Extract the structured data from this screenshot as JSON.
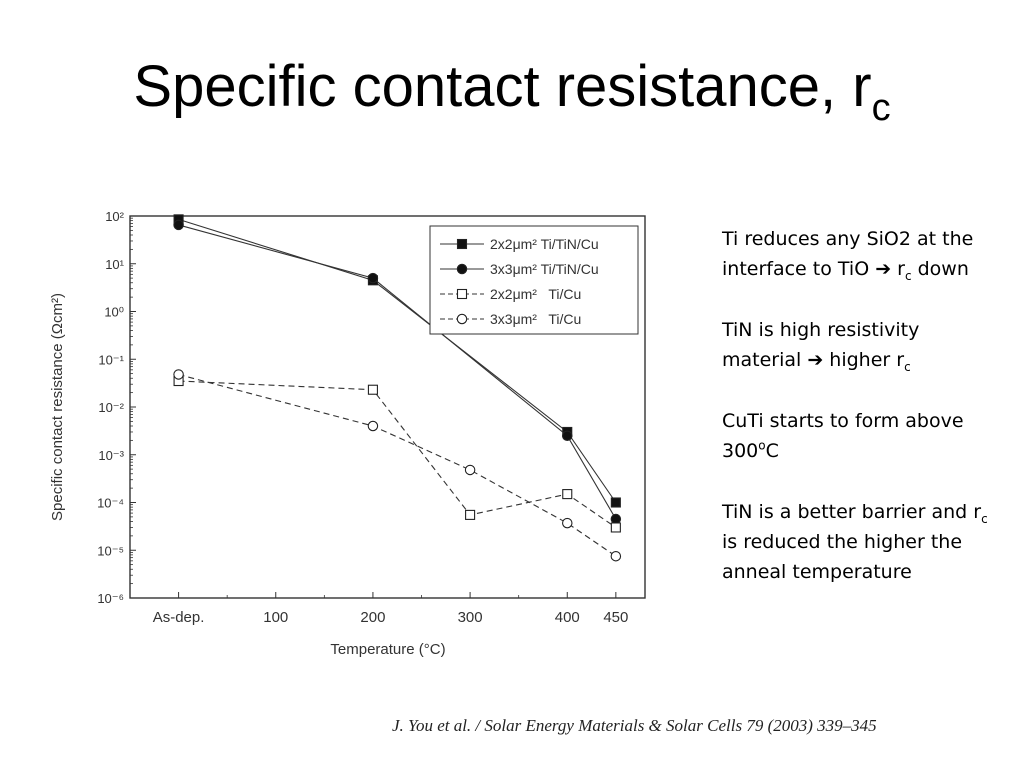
{
  "slide": {
    "title": "Specific contact resistance, r",
    "title_sub": "c"
  },
  "notes": [
    {
      "a": "Ti reduces any SiO2 at the interface to TiO ",
      "arrow": "➔",
      "b": " r",
      "sub": "c",
      "c": " down"
    },
    {
      "a": "TiN is high resistivity material ",
      "arrow": "➔",
      "b": " higher r",
      "sub": "c"
    },
    {
      "a": "CuTi starts to form above 300",
      "sup": "o",
      "b": "C"
    },
    {
      "a": "TiN is a better barrier and r",
      "sub": "c",
      "b": " is reduced the higher the anneal temperature"
    }
  ],
  "citation": "J. You et al. / Solar Energy Materials & Solar Cells 79 (2003) 339–345",
  "chart_data": {
    "type": "line",
    "xlabel": "Temperature (°C)",
    "ylabel": "Specific contact resistance (Ωcm²)",
    "x_ticks": [
      "As-dep.",
      "100",
      "200",
      "300",
      "400",
      "450"
    ],
    "x_tick_values": [
      0,
      100,
      200,
      300,
      400,
      450
    ],
    "xlim": [
      -50,
      480
    ],
    "y_scale": "log",
    "ylim_exponent": [
      -6,
      2
    ],
    "y_tick_labels": [
      "10²",
      "10¹",
      "10⁰",
      "10⁻¹",
      "10⁻²",
      "10⁻³",
      "10⁻⁴",
      "10⁻⁵",
      "10⁻⁶"
    ],
    "legend_position": "top-right",
    "series": [
      {
        "name": "2x2μm² Ti/TiN/Cu",
        "line": "solid",
        "marker": "square-filled",
        "x": [
          0,
          200,
          400,
          450
        ],
        "y": [
          85,
          4.5,
          0.003,
          0.0001
        ]
      },
      {
        "name": "3x3μm² Ti/TiN/Cu",
        "line": "solid",
        "marker": "circle-filled",
        "x": [
          0,
          200,
          400,
          450
        ],
        "y": [
          65,
          5,
          0.0025,
          4.5e-05
        ]
      },
      {
        "name": "2x2μm²   Ti/Cu",
        "line": "dashed",
        "marker": "square-open",
        "x": [
          0,
          200,
          300,
          400,
          450
        ],
        "y": [
          0.035,
          0.023,
          5.5e-05,
          0.00015,
          3e-05
        ]
      },
      {
        "name": "3x3μm²   Ti/Cu",
        "line": "dashed",
        "marker": "circle-open",
        "x": [
          0,
          200,
          300,
          400,
          450
        ],
        "y": [
          0.048,
          0.004,
          0.00048,
          3.7e-05,
          7.5e-06
        ]
      }
    ]
  }
}
